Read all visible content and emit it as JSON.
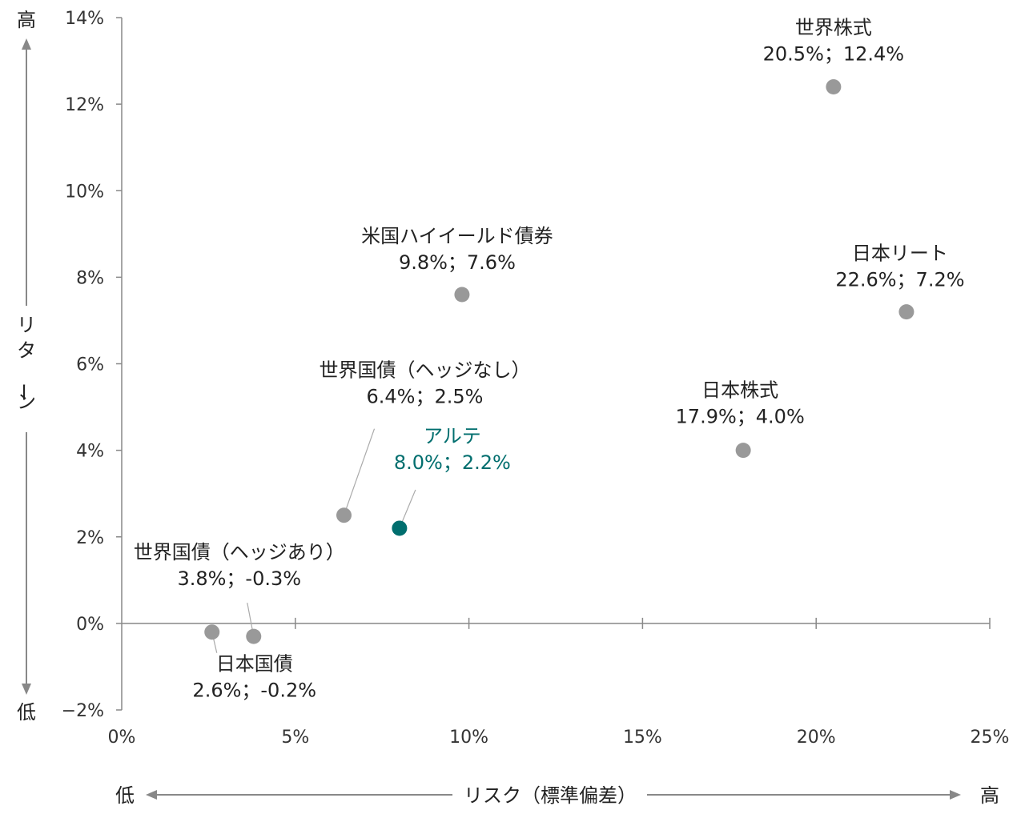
{
  "chart_data": {
    "type": "scatter",
    "xlabel": "リスク（標準偏差）",
    "ylabel": "リターン",
    "x_low": "低",
    "x_high": "高",
    "y_low": "低",
    "y_high": "高",
    "xlim": [
      0,
      25
    ],
    "ylim": [
      -2,
      14
    ],
    "x_ticks": [
      0,
      5,
      10,
      15,
      20,
      25
    ],
    "x_tick_labels": [
      "0%",
      "5%",
      "10%",
      "15%",
      "20%",
      "25%"
    ],
    "y_ticks": [
      -2,
      0,
      2,
      4,
      6,
      8,
      10,
      12,
      14
    ],
    "y_tick_labels": [
      "−2%",
      "0%",
      "2%",
      "4%",
      "6%",
      "8%",
      "10%",
      "12%",
      "14%"
    ],
    "grid": false,
    "points": [
      {
        "name": "世界株式",
        "value_label": "20.5%；12.4%",
        "x": 20.5,
        "y": 12.4,
        "color": "#999999",
        "highlight": false
      },
      {
        "name": "日本リート",
        "value_label": "22.6%；7.2%",
        "x": 22.6,
        "y": 7.2,
        "color": "#999999",
        "highlight": false
      },
      {
        "name": "米国ハイイールド債券",
        "value_label": "9.8%；7.6%",
        "x": 9.8,
        "y": 7.6,
        "color": "#999999",
        "highlight": false
      },
      {
        "name": "日本株式",
        "value_label": "17.9%；4.0%",
        "x": 17.9,
        "y": 4.0,
        "color": "#999999",
        "highlight": false
      },
      {
        "name": "世界国債（ヘッジなし）",
        "value_label": "6.4%；2.5%",
        "x": 6.4,
        "y": 2.5,
        "color": "#999999",
        "highlight": false
      },
      {
        "name": "アルテ",
        "value_label": "8.0%；2.2%",
        "x": 8.0,
        "y": 2.2,
        "color": "#006e6e",
        "highlight": true
      },
      {
        "name": "世界国債（ヘッジあり）",
        "value_label": "3.8%；-0.3%",
        "x": 3.8,
        "y": -0.3,
        "color": "#999999",
        "highlight": false
      },
      {
        "name": "日本国債",
        "value_label": "2.6%；-0.2%",
        "x": 2.6,
        "y": -0.2,
        "color": "#999999",
        "highlight": false
      }
    ]
  }
}
